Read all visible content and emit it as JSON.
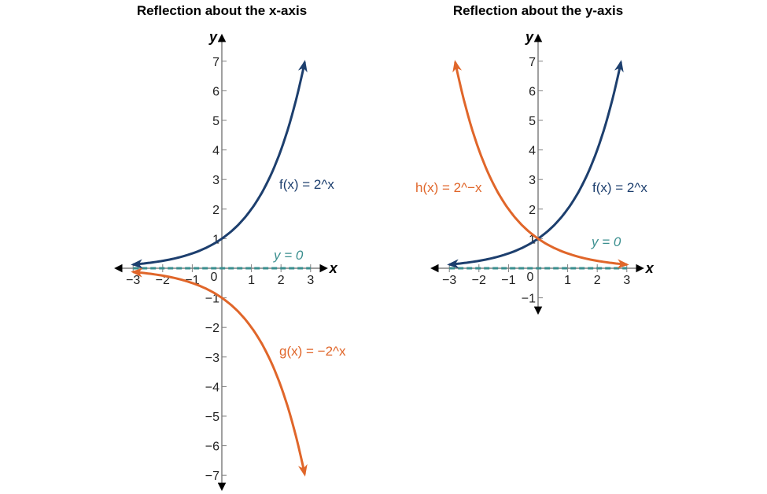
{
  "colors": {
    "f": "#1d3f6e",
    "g": "#e0662a",
    "asym": "#3b8f8f",
    "axis": "#808080"
  },
  "chart_data": [
    {
      "type": "line",
      "title": "Reflection about the x-axis",
      "xlabel": "x",
      "ylabel": "y",
      "xlim": [
        -3,
        3
      ],
      "ylim": [
        -7,
        7
      ],
      "xticks": [
        -3,
        -2,
        -1,
        0,
        1,
        2,
        3
      ],
      "yticks": [
        -7,
        -6,
        -5,
        -4,
        -3,
        -2,
        -1,
        1,
        2,
        3,
        4,
        5,
        6,
        7
      ],
      "series": [
        {
          "name": "f(x) = 2^x",
          "expr": "2^x",
          "x_range": [
            -3,
            2.8
          ]
        },
        {
          "name": "g(x) = −2^x",
          "expr": "-2^x",
          "x_range": [
            -3,
            2.8
          ]
        }
      ],
      "asymptote": {
        "label": "y = 0",
        "y": 0
      }
    },
    {
      "type": "line",
      "title": "Reflection about the y-axis",
      "xlabel": "x",
      "ylabel": "y",
      "xlim": [
        -3,
        3
      ],
      "ylim": [
        -1,
        7
      ],
      "xticks": [
        -3,
        -2,
        -1,
        0,
        1,
        2,
        3
      ],
      "yticks": [
        -1,
        1,
        2,
        3,
        4,
        5,
        6,
        7
      ],
      "series": [
        {
          "name": "f(x) = 2^x",
          "expr": "2^x",
          "x_range": [
            -3,
            2.8
          ]
        },
        {
          "name": "h(x) = 2^−x",
          "expr": "2^-x",
          "x_range": [
            -2.8,
            3
          ]
        }
      ],
      "asymptote": {
        "label": "y = 0",
        "y": 0
      }
    }
  ]
}
